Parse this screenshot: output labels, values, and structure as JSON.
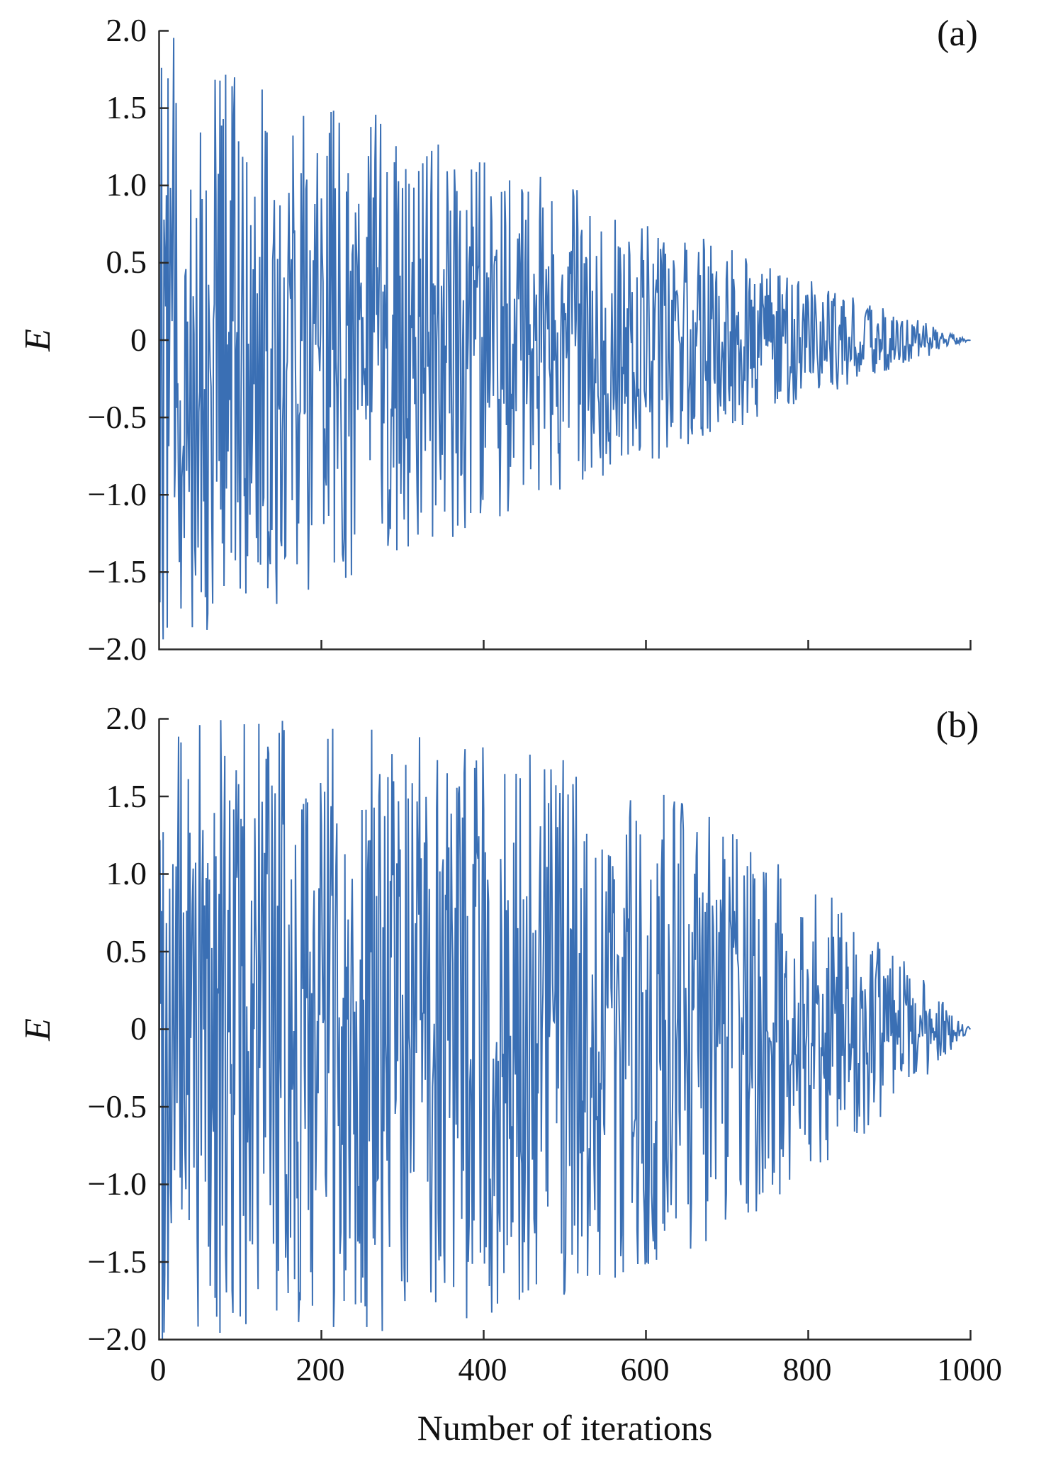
{
  "figure": {
    "background": "#ffffff",
    "axis_color": "#2a2a2a",
    "text_color": "#111111"
  },
  "chart_data": [
    {
      "id": "a",
      "type": "line",
      "panel_label": "(a)",
      "ylabel": "E",
      "xlabel": "",
      "xlim": [
        0,
        1000
      ],
      "ylim": [
        -2.0,
        2.0
      ],
      "xticks": [
        0,
        200,
        400,
        600,
        800,
        1000
      ],
      "xtick_labels": [],
      "yticks": [
        2.0,
        1.5,
        1.0,
        0.5,
        0,
        -0.5,
        -1.0,
        -1.5,
        -2.0
      ],
      "ytick_labels": [
        "2.0",
        "1.5",
        "1.0",
        "0.5",
        "0",
        "−0.5",
        "−1.0",
        "−1.5",
        "−2.0"
      ],
      "line_color": "#3a6fb4",
      "grid": false,
      "legend": "none",
      "series": {
        "name": "E",
        "n_points": 1000,
        "noise": "uniform(-1,1) scaled by envelope",
        "envelope": "A(x) = 2.0 * (1 - x/1000), linear decay from ±2.0 at x=0 to 0 at x=1000",
        "envelope_type": "linear",
        "amplitude_start": 2.0,
        "amplitude_end": 0.0,
        "seed": 12
      }
    },
    {
      "id": "b",
      "type": "line",
      "panel_label": "(b)",
      "ylabel": "E",
      "xlabel": "Number of iterations",
      "xlim": [
        0,
        1000
      ],
      "ylim": [
        -2.0,
        2.0
      ],
      "xticks": [
        0,
        200,
        400,
        600,
        800,
        1000
      ],
      "xtick_labels": [
        "0",
        "200",
        "400",
        "600",
        "800",
        "1000"
      ],
      "yticks": [
        2.0,
        1.5,
        1.0,
        0.5,
        0,
        -0.5,
        -1.0,
        -1.5,
        -2.0
      ],
      "ytick_labels": [
        "2.0",
        "1.5",
        "1.0",
        "0.5",
        "0",
        "−0.5",
        "−1.0",
        "−1.5",
        "−2.0"
      ],
      "line_color": "#3a6fb4",
      "grid": false,
      "legend": "none",
      "series": {
        "name": "E",
        "n_points": 1000,
        "noise": "uniform(-1,1) scaled by envelope",
        "envelope": "A(x) = 2.0 * (1 - (x/1000)^3), slow decay then rapid convergence to 0 at x=1000",
        "envelope_type": "cubic",
        "amplitude_start": 2.0,
        "amplitude_end": 0.0,
        "seed": 99
      }
    }
  ]
}
